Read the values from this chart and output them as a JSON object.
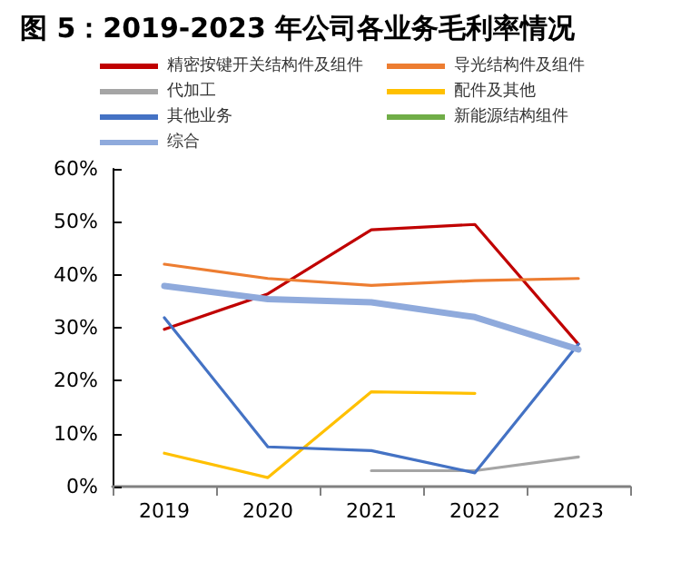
{
  "chart_data": {
    "type": "line",
    "title": "图 5：2019-2023 年公司各业务毛利率情况",
    "categories": [
      "2019",
      "2020",
      "2021",
      "2022",
      "2023"
    ],
    "series": [
      {
        "name": "精密按键开关结构件及组件",
        "color": "#c00000",
        "values": [
          29.7,
          36.4,
          48.5,
          49.5,
          26.9
        ]
      },
      {
        "name": "导光结构件及组件",
        "color": "#ed7d31",
        "values": [
          42.0,
          39.3,
          38.0,
          38.9,
          39.3
        ]
      },
      {
        "name": "代加工",
        "color": "#a5a5a5",
        "values": [
          null,
          null,
          3.0,
          3.0,
          5.6
        ]
      },
      {
        "name": "配件及其他",
        "color": "#ffc000",
        "values": [
          6.3,
          1.7,
          17.9,
          17.6,
          null
        ]
      },
      {
        "name": "其他业务",
        "color": "#4472c4",
        "values": [
          31.9,
          7.5,
          6.8,
          2.6,
          26.9
        ]
      },
      {
        "name": "新能源结构组件",
        "color": "#70ad47",
        "values": [
          null,
          null,
          null,
          null,
          null
        ]
      },
      {
        "name": "综合",
        "color": "#8faadc",
        "values": [
          37.9,
          35.4,
          34.8,
          32.0,
          25.9
        ]
      }
    ],
    "ylim": [
      0,
      60
    ],
    "yticks": [
      {
        "value": 0,
        "label": "0%"
      },
      {
        "value": 10,
        "label": "10%"
      },
      {
        "value": 20,
        "label": "20%"
      },
      {
        "value": 30,
        "label": "30%"
      },
      {
        "value": 40,
        "label": "40%"
      },
      {
        "value": 50,
        "label": "50%"
      },
      {
        "value": 60,
        "label": "60%"
      }
    ],
    "grid": false,
    "legend": "top",
    "marker": "none",
    "line_style": "solid"
  }
}
